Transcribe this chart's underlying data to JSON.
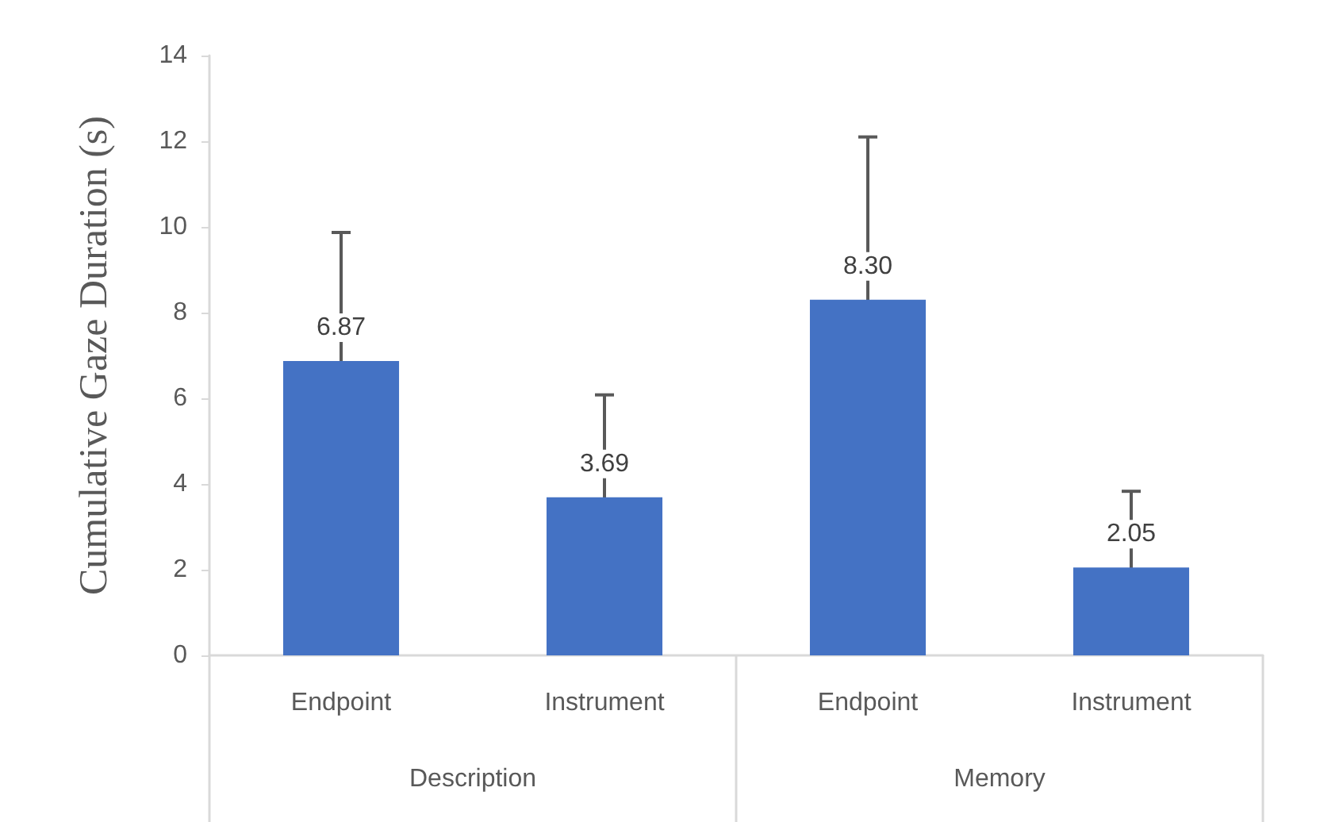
{
  "chart_data": {
    "type": "bar",
    "ylabel": "Cumulative Gaze Duration (s)",
    "categories": [
      "Endpoint",
      "Instrument",
      "Endpoint",
      "Instrument"
    ],
    "values": [
      6.87,
      3.69,
      8.3,
      2.05
    ],
    "errors": [
      3.0,
      2.39,
      3.8,
      1.78
    ],
    "value_labels": [
      "6.87",
      "3.69",
      "8.30",
      "2.05"
    ],
    "color": "#4472c4",
    "ylim": [
      0,
      14
    ],
    "yticks": [
      0,
      2,
      4,
      6,
      8,
      10,
      12,
      14
    ],
    "annotations": [
      "Description",
      "Memory"
    ],
    "grid": false
  }
}
